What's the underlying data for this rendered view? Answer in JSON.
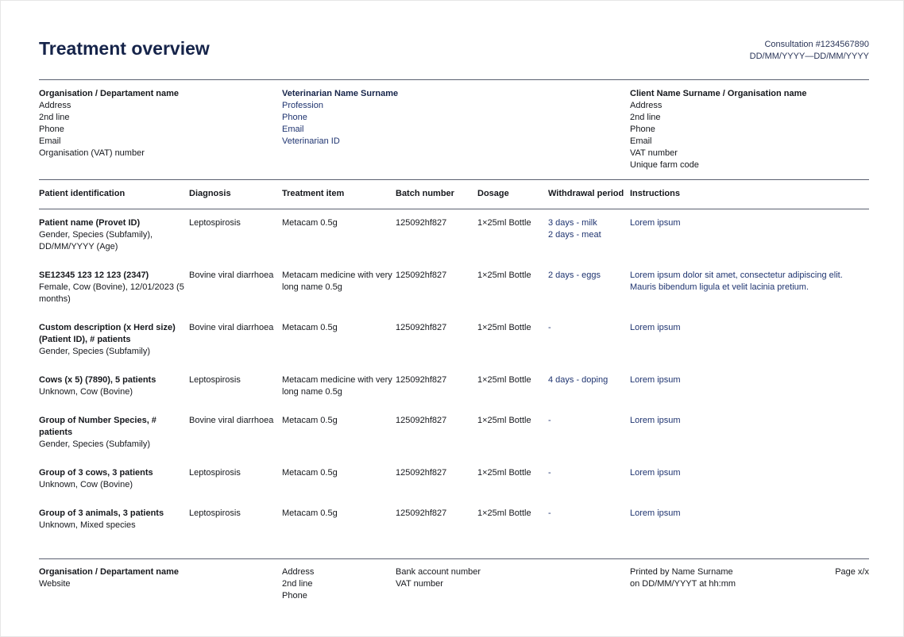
{
  "header": {
    "title": "Treatment overview",
    "consultation": "Consultation #1234567890",
    "date_range": "DD/MM/YYYY—DD/MM/YYYY"
  },
  "organisation": {
    "name": "Organisation / Departament name",
    "lines": [
      "Address",
      "2nd line",
      "Phone",
      "Email",
      "Organisation (VAT) number"
    ]
  },
  "veterinarian": {
    "name": "Veterinarian Name Surname",
    "lines": [
      "Profession",
      "Phone",
      "Email",
      "Veterinarian ID"
    ]
  },
  "client": {
    "name": "Client Name Surname / Organisation name",
    "lines": [
      "Address",
      "2nd line",
      "Phone",
      "Email",
      "VAT number",
      "Unique farm code"
    ]
  },
  "table": {
    "columns": [
      "Patient identification",
      "Diagnosis",
      "Treatment item",
      "Batch number",
      "Dosage",
      "Withdrawal period",
      "Instructions"
    ],
    "rows": [
      {
        "patient_title": "Patient name (Provet ID)",
        "patient_sub": "Gender, Species (Subfamily), DD/MM/YYYY (Age)",
        "diagnosis": "Leptospirosis",
        "item": "Metacam 0.5g",
        "batch": "125092hf827",
        "dosage": "1×25ml Bottle",
        "withdrawal": [
          "3 days - milk",
          "2 days - meat"
        ],
        "instructions": "Lorem ipsum"
      },
      {
        "patient_title": "SE12345 123 12 123 (2347)",
        "patient_sub": "Female, Cow (Bovine), 12/01/2023 (5 months)",
        "diagnosis": "Bovine viral diarrhoea",
        "item": "Metacam medicine with very long name 0.5g",
        "batch": "125092hf827",
        "dosage": "1×25ml Bottle",
        "withdrawal": [
          "2 days - eggs"
        ],
        "instructions": "Lorem ipsum dolor sit amet, consectetur adipiscing elit. Mauris bibendum ligula et velit lacinia pretium."
      },
      {
        "patient_title": "Custom description (x Herd size) (Patient ID), # patients",
        "patient_sub": "Gender, Species (Subfamily)",
        "diagnosis": "Bovine viral diarrhoea",
        "item": "Metacam 0.5g",
        "batch": "125092hf827",
        "dosage": "1×25ml Bottle",
        "withdrawal": [
          "-"
        ],
        "instructions": "Lorem ipsum"
      },
      {
        "patient_title": "Cows (x 5) (7890), 5 patients",
        "patient_sub": "Unknown, Cow (Bovine)",
        "diagnosis": "Leptospirosis",
        "item": "Metacam medicine with very long name 0.5g",
        "batch": "125092hf827",
        "dosage": "1×25ml Bottle",
        "withdrawal": [
          "4 days - doping"
        ],
        "instructions": "Lorem ipsum"
      },
      {
        "patient_title": "Group of Number Species, # patients",
        "patient_sub": "Gender, Species (Subfamily)",
        "diagnosis": "Bovine viral diarrhoea",
        "item": "Metacam 0.5g",
        "batch": "125092hf827",
        "dosage": "1×25ml Bottle",
        "withdrawal": [
          "-"
        ],
        "instructions": "Lorem ipsum"
      },
      {
        "patient_title": "Group of 3 cows, 3 patients",
        "patient_sub": "Unknown, Cow (Bovine)",
        "diagnosis": "Leptospirosis",
        "item": "Metacam 0.5g",
        "batch": "125092hf827",
        "dosage": "1×25ml Bottle",
        "withdrawal": [
          "-"
        ],
        "instructions": "Lorem ipsum"
      },
      {
        "patient_title": "Group of 3 animals, 3 patients",
        "patient_sub": "Unknown, Mixed species",
        "diagnosis": "Leptospirosis",
        "item": "Metacam 0.5g",
        "batch": "125092hf827",
        "dosage": "1×25ml Bottle",
        "withdrawal": [
          "-"
        ],
        "instructions": "Lorem ipsum"
      }
    ]
  },
  "footer": {
    "org_name": "Organisation / Departament name",
    "website": "Website",
    "address_lines": [
      "Address",
      "2nd line",
      "Phone"
    ],
    "bank_lines": [
      "Bank account number",
      "VAT number"
    ],
    "printed_by": "Printed by Name Surname",
    "printed_on": "on DD/MM/YYYT at hh:mm",
    "page": "Page x/x"
  }
}
